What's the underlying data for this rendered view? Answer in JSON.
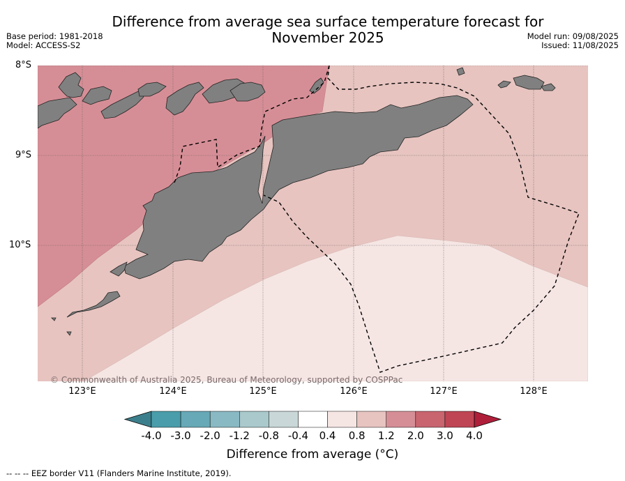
{
  "title_line1": "Difference from average sea surface temperature forecast for",
  "title_line2": "November 2025",
  "meta_left": {
    "base_period": "Base period: 1981-2018",
    "model": "Model: ACCESS-S2"
  },
  "meta_right": {
    "model_run": "Model run: 09/08/2025",
    "issued": "Issued: 11/08/2025"
  },
  "lat_labels": [
    "8°S",
    "9°S",
    "10°S"
  ],
  "lon_labels": [
    "123°E",
    "124°E",
    "125°E",
    "126°E",
    "127°E",
    "128°E"
  ],
  "copyright": "© Commonwealth of Australia 2025, Bureau of Meteorology, supported by COSPPac",
  "colorbar": {
    "ticks": [
      "-4.0",
      "-3.0",
      "-2.0",
      "-1.2",
      "-0.8",
      "-0.4",
      "0.4",
      "0.8",
      "1.2",
      "2.0",
      "3.0",
      "4.0"
    ],
    "colors": [
      "#4a9daa",
      "#67a9b6",
      "#89b9c3",
      "#a9c9cc",
      "#c9d7d8",
      "#ffffff",
      "#f5e6e4",
      "#e7c4c0",
      "#d68e96",
      "#c8656f",
      "#bf4554"
    ],
    "extend_low_color": "#3c7f8c",
    "extend_high_color": "#b01f3a",
    "label": "Difference from average (°C)"
  },
  "legend_text": "-- -- -- EEZ border V11 (Flanders Marine Institute, 2019)."
}
